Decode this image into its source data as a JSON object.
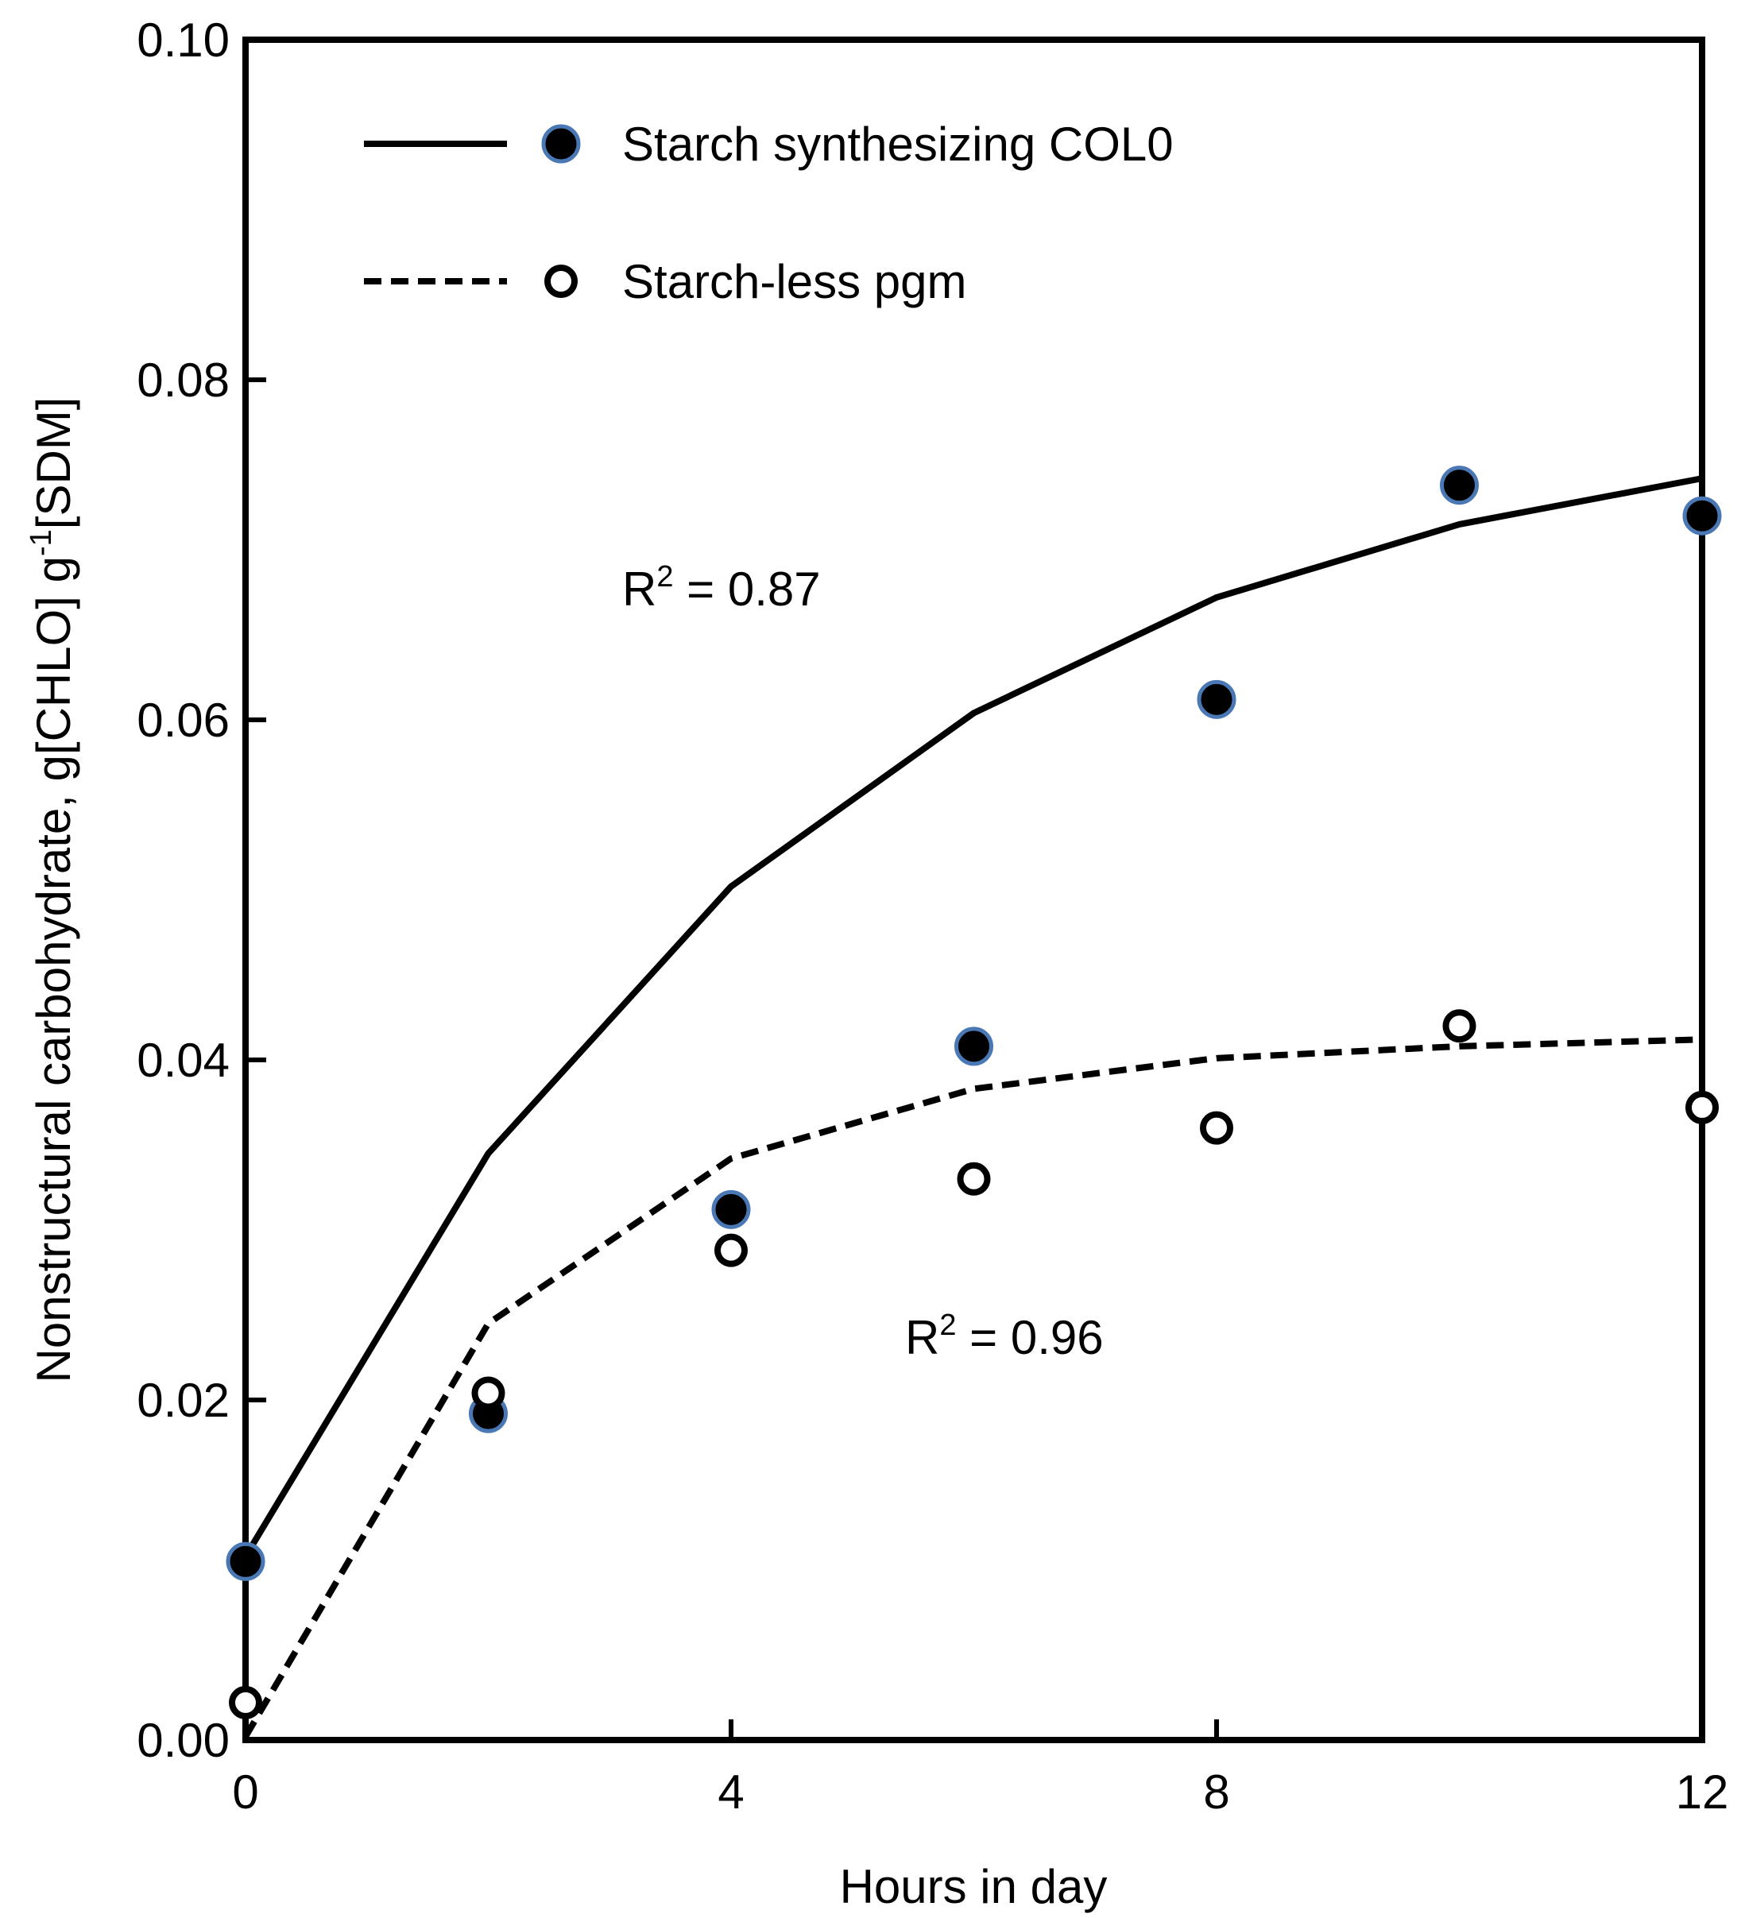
{
  "chart_data": {
    "type": "scatter",
    "title": "",
    "xlabel": "Hours in day",
    "ylabel_parts": {
      "main": "Nonstructural carbohydrate, g[CHLO] g",
      "sup": "-1",
      "tail": "[SDM]"
    },
    "xlim": [
      0,
      12
    ],
    "ylim": [
      0,
      0.1
    ],
    "x_ticks": [
      0,
      4,
      8,
      12
    ],
    "x_tick_labels": [
      "0",
      "4",
      "8",
      "12"
    ],
    "y_ticks": [
      0,
      0.02,
      0.04,
      0.06,
      0.08,
      0.1
    ],
    "y_tick_labels": [
      "0.00",
      "0.02",
      "0.04",
      "0.06",
      "0.08",
      "0.10"
    ],
    "grid": false,
    "legend_position": "top-left",
    "series": [
      {
        "name": "Starch synthesizing COL0",
        "marker": "filled-circle",
        "marker_fill": "#000000",
        "marker_edge": "#4a78b5",
        "line_style": "solid",
        "points": [
          [
            0,
            0.0105
          ],
          [
            2,
            0.0192
          ],
          [
            4,
            0.0312
          ],
          [
            6,
            0.0408
          ],
          [
            8,
            0.0612
          ],
          [
            10,
            0.0738
          ],
          [
            12,
            0.072
          ]
        ],
        "fit": [
          [
            0,
            0.0108
          ],
          [
            2,
            0.0345
          ],
          [
            4,
            0.0502
          ],
          [
            6,
            0.0604
          ],
          [
            8,
            0.0672
          ],
          [
            10,
            0.0715
          ],
          [
            12,
            0.0742
          ]
        ],
        "r2_label": {
          "prefix": "R",
          "sup": "2",
          "value": " = 0.87"
        }
      },
      {
        "name": "Starch-less pgm",
        "marker": "open-circle",
        "marker_fill": "#ffffff",
        "marker_edge": "#000000",
        "line_style": "dashed",
        "points": [
          [
            0,
            0.0022
          ],
          [
            2,
            0.0204
          ],
          [
            4,
            0.0288
          ],
          [
            6,
            0.033
          ],
          [
            8,
            0.036
          ],
          [
            10,
            0.042
          ],
          [
            12,
            0.0372
          ]
        ],
        "fit": [
          [
            0,
            0.0002
          ],
          [
            2,
            0.0245
          ],
          [
            4,
            0.0342
          ],
          [
            6,
            0.0383
          ],
          [
            8,
            0.0401
          ],
          [
            10,
            0.0408
          ],
          [
            12,
            0.0412
          ]
        ],
        "r2_label": {
          "prefix": "R",
          "sup": "2",
          "value": " = 0.96"
        }
      }
    ]
  }
}
